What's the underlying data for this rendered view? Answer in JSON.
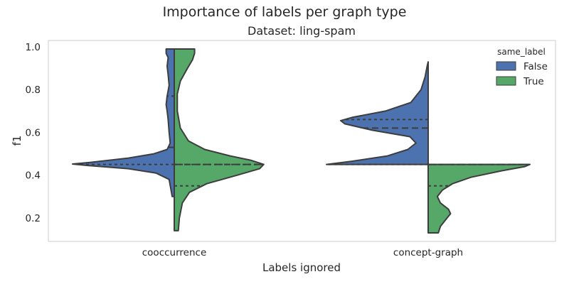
{
  "suptitle": "Importance of labels per graph type",
  "chart_data": {
    "type": "violin",
    "title": "Dataset: ling-spam",
    "xlabel": "Labels ignored",
    "ylabel": "f1",
    "categories": [
      "cooccurrence",
      "concept-graph"
    ],
    "ylim": [
      0.09,
      1.03
    ],
    "yticks": [
      "0.2",
      "0.4",
      "0.6",
      "0.8",
      "1.0"
    ],
    "grid": false,
    "legend": {
      "title": "same_label",
      "position": "top-right"
    },
    "split": true,
    "inner": "quartile",
    "series": [
      {
        "name": "False",
        "color": "#4c72b0",
        "violins": [
          {
            "category": "cooccurrence",
            "quartiles": [
              0.45,
              0.53,
              0.77
            ],
            "range": [
              0.3,
              0.99
            ],
            "density": [
              [
                0.3,
                0.02
              ],
              [
                0.38,
                0.05
              ],
              [
                0.41,
                0.18
              ],
              [
                0.43,
                0.45
              ],
              [
                0.445,
                0.85
              ],
              [
                0.452,
                1.0
              ],
              [
                0.46,
                0.82
              ],
              [
                0.48,
                0.45
              ],
              [
                0.5,
                0.2
              ],
              [
                0.52,
                0.07
              ],
              [
                0.55,
                0.04
              ],
              [
                0.6,
                0.05
              ],
              [
                0.66,
                0.06
              ],
              [
                0.7,
                0.07
              ],
              [
                0.73,
                0.08
              ],
              [
                0.77,
                0.07
              ],
              [
                0.82,
                0.05
              ],
              [
                0.87,
                0.06
              ],
              [
                0.91,
                0.07
              ],
              [
                0.95,
                0.06
              ],
              [
                0.97,
                0.08
              ],
              [
                0.99,
                0.08
              ]
            ]
          },
          {
            "category": "concept-graph",
            "quartiles": [
              0.45,
              0.62,
              0.66
            ],
            "range": [
              0.45,
              0.93
            ],
            "density": [
              [
                0.45,
                1.0
              ],
              [
                0.465,
                0.75
              ],
              [
                0.49,
                0.4
              ],
              [
                0.52,
                0.2
              ],
              [
                0.55,
                0.12
              ],
              [
                0.58,
                0.18
              ],
              [
                0.61,
                0.55
              ],
              [
                0.64,
                0.82
              ],
              [
                0.655,
                0.86
              ],
              [
                0.67,
                0.75
              ],
              [
                0.7,
                0.42
              ],
              [
                0.74,
                0.17
              ],
              [
                0.8,
                0.07
              ],
              [
                0.86,
                0.03
              ],
              [
                0.91,
                0.01
              ],
              [
                0.93,
                0.0
              ]
            ]
          }
        ]
      },
      {
        "name": "True",
        "color": "#55a868",
        "violins": [
          {
            "category": "cooccurrence",
            "quartiles": [
              0.35,
              0.45,
              0.45
            ],
            "range": [
              0.14,
              0.99
            ],
            "density": [
              [
                0.14,
                0.04
              ],
              [
                0.2,
                0.05
              ],
              [
                0.27,
                0.08
              ],
              [
                0.32,
                0.15
              ],
              [
                0.36,
                0.32
              ],
              [
                0.4,
                0.62
              ],
              [
                0.43,
                0.84
              ],
              [
                0.45,
                0.88
              ],
              [
                0.47,
                0.75
              ],
              [
                0.49,
                0.55
              ],
              [
                0.52,
                0.3
              ],
              [
                0.56,
                0.14
              ],
              [
                0.62,
                0.06
              ],
              [
                0.7,
                0.03
              ],
              [
                0.78,
                0.03
              ],
              [
                0.84,
                0.06
              ],
              [
                0.9,
                0.13
              ],
              [
                0.94,
                0.18
              ],
              [
                0.97,
                0.2
              ],
              [
                0.99,
                0.2
              ]
            ]
          },
          {
            "category": "concept-graph",
            "quartiles": [
              0.35,
              0.45,
              0.45
            ],
            "range": [
              0.13,
              0.45
            ],
            "density": [
              [
                0.13,
                0.1
              ],
              [
                0.16,
                0.12
              ],
              [
                0.19,
                0.17
              ],
              [
                0.22,
                0.22
              ],
              [
                0.24,
                0.2
              ],
              [
                0.27,
                0.12
              ],
              [
                0.3,
                0.09
              ],
              [
                0.33,
                0.14
              ],
              [
                0.36,
                0.24
              ],
              [
                0.39,
                0.42
              ],
              [
                0.42,
                0.72
              ],
              [
                0.44,
                0.95
              ],
              [
                0.45,
                1.0
              ]
            ]
          }
        ]
      }
    ]
  }
}
